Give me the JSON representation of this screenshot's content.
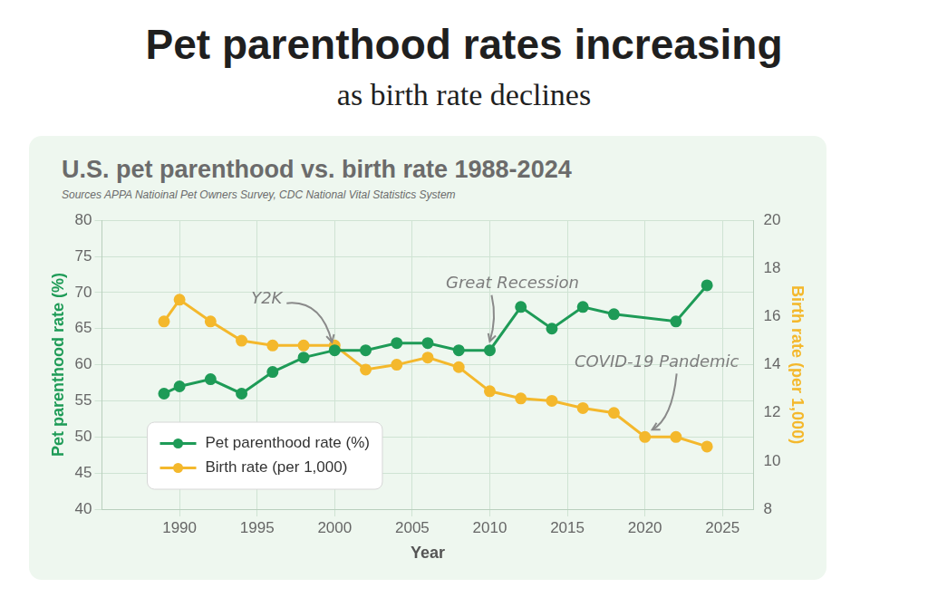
{
  "header": {
    "title": "Pet parenthood rates increasing",
    "subtitle": "as birth rate declines"
  },
  "chart_data": {
    "type": "line",
    "title": "U.S. pet parenthood vs. birth rate 1988-2024",
    "source": "Sources APPA Natioinal Pet Owners Survey, CDC National Vital Statistics System",
    "x_label": "Year",
    "y_label": "Pet parenthood rate (%)",
    "y2_label": "Birth rate (per 1,000)",
    "xlim": [
      1985,
      2027
    ],
    "xticks": [
      1990,
      1995,
      2000,
      2005,
      2010,
      2015,
      2020,
      2025
    ],
    "ylim": [
      40,
      80
    ],
    "yticks": [
      40,
      45,
      50,
      55,
      60,
      65,
      70,
      75,
      80
    ],
    "y2lim": [
      8,
      20
    ],
    "y2ticks": [
      8,
      10,
      12,
      14,
      16,
      18,
      20
    ],
    "grid": true,
    "legend": "lower left",
    "marker": "circle",
    "series": [
      {
        "name": "Pet parenthood rate (%)",
        "color": "#1e9b57",
        "axis": "y",
        "x": [
          1989,
          1990,
          1992,
          1994,
          1996,
          1998,
          2000,
          2002,
          2004,
          2006,
          2008,
          2010,
          2012,
          2014,
          2016,
          2018,
          2022,
          2024
        ],
        "values": [
          56,
          57,
          58,
          56,
          59,
          61,
          62,
          62,
          63,
          63,
          62,
          62,
          68,
          65,
          68,
          67,
          66,
          71
        ]
      },
      {
        "name": "Birth rate (per 1,000)",
        "color": "#f4b82c",
        "axis": "y2",
        "x": [
          1989,
          1990,
          1992,
          1994,
          1996,
          1998,
          2000,
          2002,
          2004,
          2006,
          2008,
          2010,
          2012,
          2014,
          2016,
          2018,
          2020,
          2022,
          2024
        ],
        "values": [
          15.8,
          16.7,
          15.8,
          15.0,
          14.8,
          14.8,
          14.8,
          13.8,
          14.0,
          14.3,
          13.9,
          12.9,
          12.6,
          12.5,
          12.2,
          12.0,
          11.0,
          11.0,
          10.6
        ]
      }
    ],
    "annotations": [
      {
        "text": "Y2K",
        "series": "Pet parenthood rate (%)",
        "x": 2000
      },
      {
        "text": "Great Recession",
        "series": "Pet parenthood rate (%)",
        "x": 2010
      },
      {
        "text": "COVID-19 Pandemic",
        "series": "Birth rate (per 1,000)",
        "x": 2020
      }
    ]
  }
}
